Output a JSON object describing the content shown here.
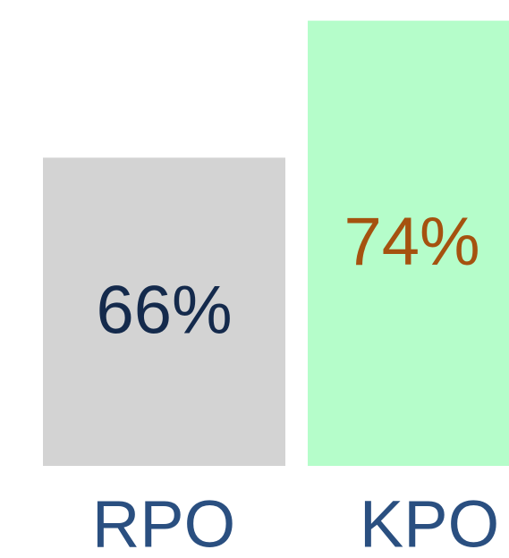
{
  "chart_data": {
    "type": "bar",
    "categories": [
      "RPO",
      "KPO"
    ],
    "values": [
      66,
      74
    ],
    "value_labels": [
      "66%",
      "74%"
    ],
    "colors": [
      "#d3d3d3",
      "#b5fdca"
    ],
    "label_colors": [
      "#142a4c",
      "#a5520f"
    ],
    "ylim": [
      48,
      75
    ]
  }
}
